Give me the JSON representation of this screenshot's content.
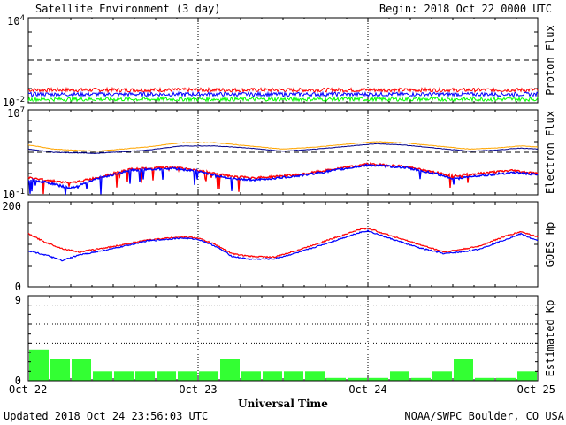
{
  "header": {
    "title": "Satellite Environment (3 day)",
    "begin": "Begin:  2018 Oct 22 0000 UTC"
  },
  "footer": {
    "updated": "Updated 2018 Oct 24 23:56:03 UTC",
    "credit": "NOAA/SWPC Boulder, CO USA",
    "xlabel": "Universal Time"
  },
  "x_ticks": [
    "Oct 22",
    "Oct 23",
    "Oct 24",
    "Oct 25"
  ],
  "colors": {
    "red": "#ff0000",
    "blue": "#0000ff",
    "green": "#00ff00",
    "orange": "#ffa500",
    "navy": "#00008b",
    "kp_bar": "#33ff33"
  },
  "chart_data": [
    {
      "type": "line",
      "ylabel": "Proton Flux",
      "yscale": "log",
      "ylim_exp": [
        -2,
        4
      ],
      "tick_labels": [
        {
          "base": "10",
          "exp": "4"
        },
        {
          "base": "10",
          "exp": "-2"
        }
      ],
      "threshold_exp": 1,
      "x_days": [
        0,
        3
      ],
      "series": [
        {
          "color": "red",
          "level_exp": -1.1
        },
        {
          "color": "blue",
          "level_exp": -1.4
        },
        {
          "color": "green",
          "level_exp": -1.75
        }
      ]
    },
    {
      "type": "line",
      "ylabel": "Electron Flux",
      "yscale": "log",
      "ylim_exp": [
        -1,
        7
      ],
      "tick_labels": [
        {
          "base": "10",
          "exp": "7"
        },
        {
          "base": "10",
          "exp": "-1"
        }
      ],
      "threshold_exp": 3,
      "series": [
        {
          "color": "orange",
          "points": [
            [
              0,
              3.7
            ],
            [
              0.15,
              3.3
            ],
            [
              0.4,
              3.1
            ],
            [
              0.7,
              3.5
            ],
            [
              0.9,
              3.9
            ],
            [
              1.1,
              3.9
            ],
            [
              1.3,
              3.6
            ],
            [
              1.5,
              3.3
            ],
            [
              1.7,
              3.5
            ],
            [
              1.9,
              3.8
            ],
            [
              2.05,
              4.0
            ],
            [
              2.2,
              3.9
            ],
            [
              2.4,
              3.6
            ],
            [
              2.6,
              3.3
            ],
            [
              2.75,
              3.4
            ],
            [
              2.9,
              3.6
            ],
            [
              3.0,
              3.5
            ]
          ]
        },
        {
          "color": "navy",
          "points": [
            [
              0,
              3.3
            ],
            [
              0.15,
              3.0
            ],
            [
              0.4,
              2.9
            ],
            [
              0.7,
              3.2
            ],
            [
              0.9,
              3.6
            ],
            [
              1.1,
              3.6
            ],
            [
              1.3,
              3.4
            ],
            [
              1.5,
              3.1
            ],
            [
              1.7,
              3.3
            ],
            [
              1.9,
              3.6
            ],
            [
              2.05,
              3.8
            ],
            [
              2.2,
              3.7
            ],
            [
              2.4,
              3.4
            ],
            [
              2.6,
              3.1
            ],
            [
              2.75,
              3.2
            ],
            [
              2.9,
              3.4
            ],
            [
              3.0,
              3.3
            ]
          ]
        },
        {
          "color": "red",
          "points": [
            [
              0,
              0.6
            ],
            [
              0.1,
              0.4
            ],
            [
              0.25,
              0.1
            ],
            [
              0.4,
              0.6
            ],
            [
              0.6,
              1.4
            ],
            [
              0.85,
              1.6
            ],
            [
              1.0,
              1.3
            ],
            [
              1.2,
              0.7
            ],
            [
              1.35,
              0.6
            ],
            [
              1.6,
              0.9
            ],
            [
              1.8,
              1.4
            ],
            [
              2.0,
              1.9
            ],
            [
              2.2,
              1.7
            ],
            [
              2.4,
              1.1
            ],
            [
              2.5,
              0.8
            ],
            [
              2.65,
              1.0
            ],
            [
              2.85,
              1.3
            ],
            [
              3.0,
              1.0
            ]
          ]
        },
        {
          "color": "blue",
          "points": [
            [
              0,
              0.4
            ],
            [
              0.1,
              0.2
            ],
            [
              0.25,
              -0.4
            ],
            [
              0.4,
              0.5
            ],
            [
              0.6,
              1.3
            ],
            [
              0.85,
              1.5
            ],
            [
              1.0,
              1.2
            ],
            [
              1.2,
              0.5
            ],
            [
              1.35,
              0.4
            ],
            [
              1.6,
              0.8
            ],
            [
              1.8,
              1.3
            ],
            [
              2.0,
              1.8
            ],
            [
              2.2,
              1.6
            ],
            [
              2.4,
              1.0
            ],
            [
              2.5,
              0.5
            ],
            [
              2.65,
              0.8
            ],
            [
              2.85,
              1.1
            ],
            [
              3.0,
              0.9
            ]
          ]
        }
      ]
    },
    {
      "type": "line",
      "ylabel": "GOES Hp",
      "ylim": [
        0,
        200
      ],
      "tick_labels": [
        "200",
        "0"
      ],
      "series": [
        {
          "color": "red",
          "points": [
            [
              0,
              125
            ],
            [
              0.1,
              105
            ],
            [
              0.2,
              90
            ],
            [
              0.3,
              82
            ],
            [
              0.5,
              95
            ],
            [
              0.7,
              110
            ],
            [
              0.9,
              118
            ],
            [
              1.0,
              115
            ],
            [
              1.1,
              100
            ],
            [
              1.2,
              78
            ],
            [
              1.3,
              72
            ],
            [
              1.45,
              70
            ],
            [
              1.6,
              88
            ],
            [
              1.8,
              115
            ],
            [
              1.95,
              135
            ],
            [
              2.0,
              138
            ],
            [
              2.1,
              125
            ],
            [
              2.3,
              100
            ],
            [
              2.45,
              82
            ],
            [
              2.55,
              88
            ],
            [
              2.65,
              95
            ],
            [
              2.8,
              118
            ],
            [
              2.9,
              130
            ],
            [
              3.0,
              118
            ]
          ]
        },
        {
          "color": "blue",
          "points": [
            [
              0,
              85
            ],
            [
              0.1,
              75
            ],
            [
              0.2,
              62
            ],
            [
              0.3,
              75
            ],
            [
              0.5,
              90
            ],
            [
              0.7,
              108
            ],
            [
              0.9,
              115
            ],
            [
              1.0,
              112
            ],
            [
              1.1,
              96
            ],
            [
              1.2,
              72
            ],
            [
              1.3,
              65
            ],
            [
              1.45,
              66
            ],
            [
              1.6,
              82
            ],
            [
              1.8,
              108
            ],
            [
              1.95,
              128
            ],
            [
              2.0,
              132
            ],
            [
              2.1,
              118
            ],
            [
              2.3,
              92
            ],
            [
              2.45,
              78
            ],
            [
              2.55,
              82
            ],
            [
              2.65,
              88
            ],
            [
              2.8,
              110
            ],
            [
              2.9,
              125
            ],
            [
              3.0,
              108
            ]
          ]
        }
      ]
    },
    {
      "type": "bar",
      "ylabel": "Estimated Kp",
      "ylim": [
        0,
        9
      ],
      "tick_labels": [
        "9",
        "0"
      ],
      "gridlines": [
        4,
        6,
        8
      ],
      "values": [
        3.3,
        2.3,
        2.3,
        1.0,
        1.0,
        1.0,
        1.0,
        1.0,
        1.0,
        2.3,
        1.0,
        1.0,
        1.0,
        1.0,
        0.3,
        0.3,
        0.3,
        1.0,
        0.3,
        1.0,
        2.3,
        0.3,
        0.3,
        1.0
      ]
    }
  ]
}
